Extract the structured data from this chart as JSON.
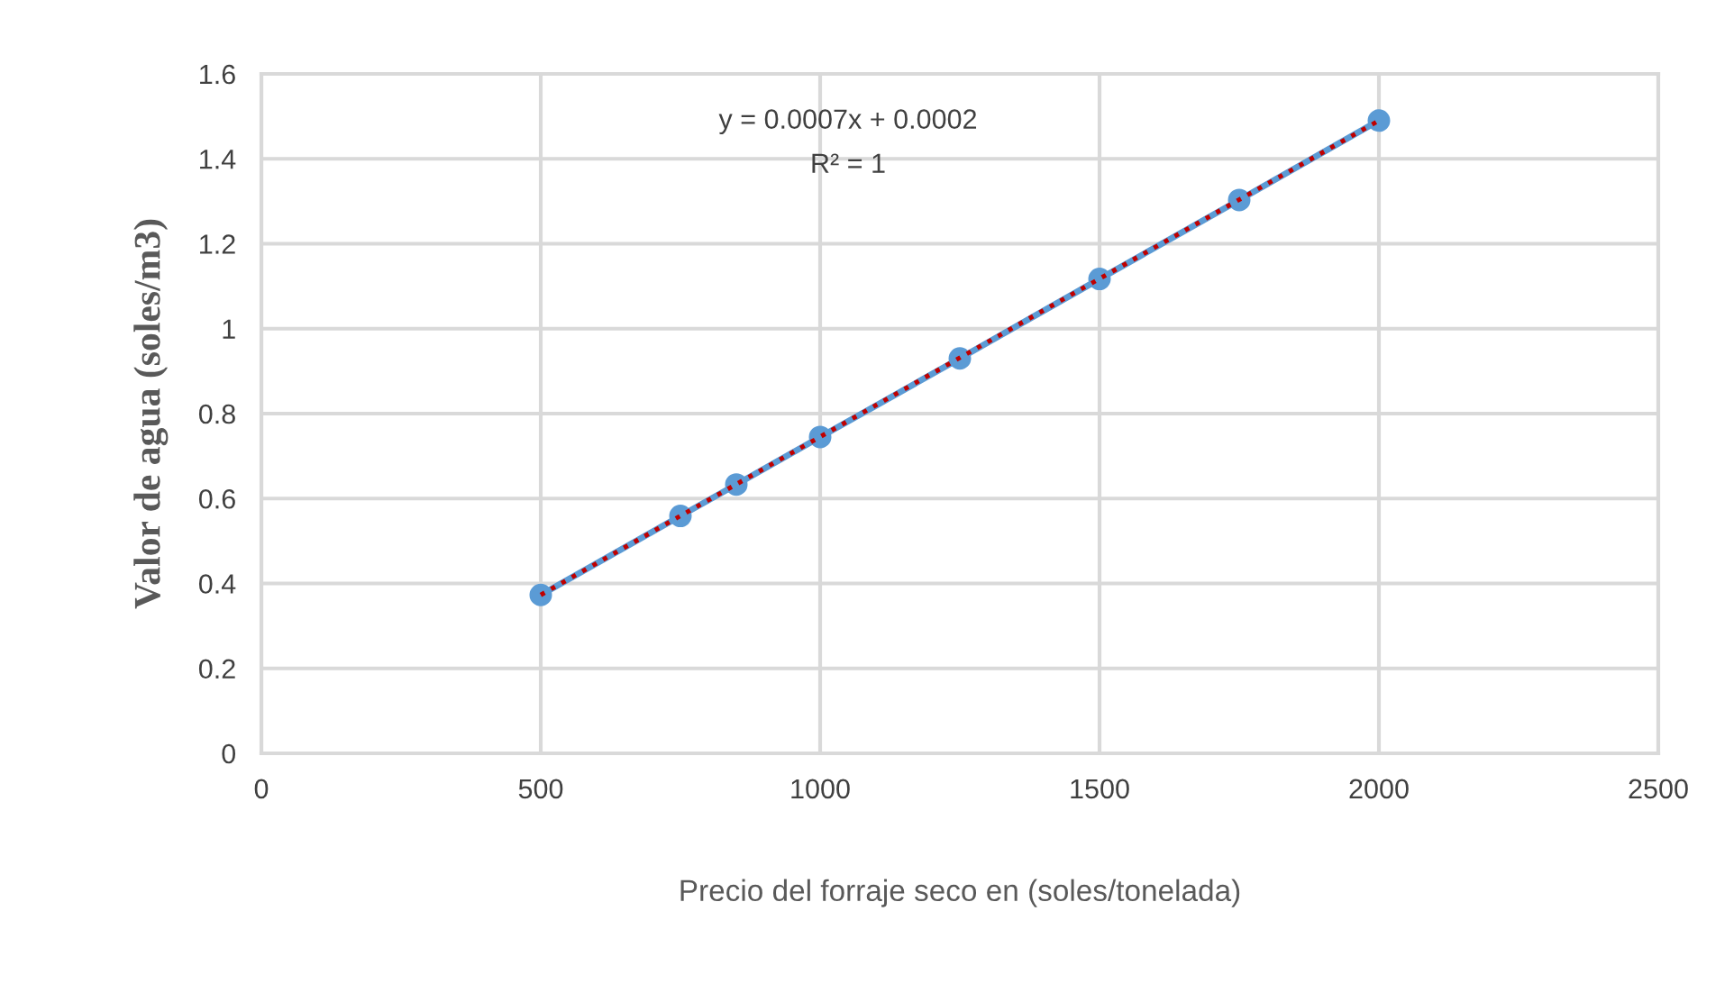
{
  "chart_data": {
    "type": "line",
    "xlabel": "Precio del forraje seco en (soles/tonelada)",
    "ylabel": "Valor de agua (soles/m3)",
    "x": [
      500,
      750,
      850,
      1000,
      1250,
      1500,
      1750,
      2000
    ],
    "series": [
      {
        "color": "#5b9bd5",
        "marker": "circle",
        "line_style": "solid",
        "values": [
          0.373,
          0.559,
          0.633,
          0.745,
          0.93,
          1.117,
          1.303,
          1.49
        ]
      },
      {
        "color": "#c00000",
        "marker": "none",
        "line_style": "dotted",
        "x": [
          500,
          2000
        ],
        "values": [
          0.373,
          1.49
        ]
      }
    ],
    "annotations": [
      "y = 0.0007x + 0.0002",
      "R² = 1"
    ],
    "xlim": [
      0,
      2500
    ],
    "xticks": [
      0,
      500,
      1000,
      1500,
      2000,
      2500
    ],
    "ylim": [
      0,
      1.6
    ],
    "yticks": [
      0,
      0.2,
      0.4,
      0.6,
      0.8,
      1,
      1.2,
      1.4,
      1.6
    ],
    "grid": true,
    "legend": false
  }
}
